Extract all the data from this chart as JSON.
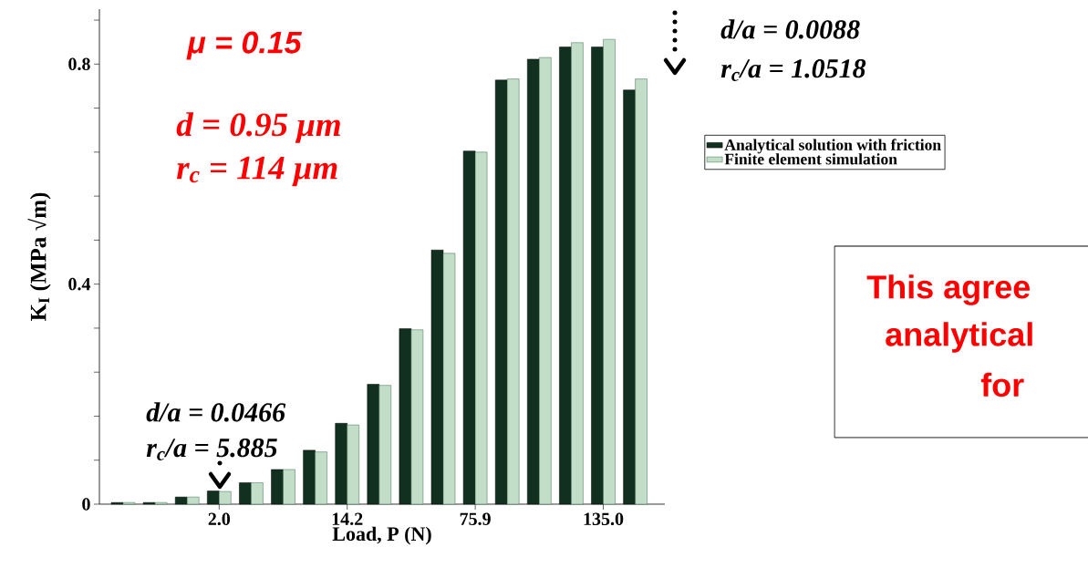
{
  "chart_data": {
    "type": "bar",
    "xlabel": "Load, P (N)",
    "ylabel": "K$_{I}$ (MPa √m)",
    "categories": [
      null,
      null,
      null,
      "2.0",
      null,
      null,
      null,
      "14.2",
      null,
      null,
      null,
      "75.9",
      null,
      null,
      null,
      "135.0",
      null
    ],
    "series": [
      {
        "name": "Analytical solution with friction",
        "color": "#12301f",
        "values": [
          0.003,
          0.003,
          0.013,
          0.024,
          0.039,
          0.063,
          0.098,
          0.147,
          0.218,
          0.319,
          0.462,
          0.642,
          0.771,
          0.809,
          0.831,
          0.831,
          0.753
        ]
      },
      {
        "name": "Finite element simulation",
        "color": "#c2dec8",
        "values": [
          0.003,
          0.003,
          0.013,
          0.023,
          0.039,
          0.063,
          0.095,
          0.144,
          0.216,
          0.317,
          0.456,
          0.64,
          0.773,
          0.812,
          0.839,
          0.845,
          0.773
        ]
      }
    ],
    "ylim": [
      0,
      0.9
    ],
    "yticks": [
      0,
      {
        "value": 0.08,
        "label": null
      },
      {
        "value": 0.16,
        "label": null
      },
      {
        "value": 0.24,
        "label": null
      },
      {
        "value": 0.32,
        "label": null
      },
      0.4,
      {
        "value": 0.48,
        "label": null
      },
      {
        "value": 0.56,
        "label": null
      },
      {
        "value": 0.64,
        "label": null
      },
      {
        "value": 0.72,
        "label": null
      },
      0.8,
      {
        "value": 0.88,
        "label": null
      }
    ],
    "legend": "right",
    "annotations": [
      "μ = 0.15",
      "d = 0.95 μm",
      "r$_{c}$ = 114 μm",
      "d/a = 0.0466",
      "r$_{c}$/a = 5.885",
      "d/a = 0.0088",
      "r$_{c}$/a = 1.0518",
      "This agree",
      "analytical",
      "for"
    ]
  }
}
